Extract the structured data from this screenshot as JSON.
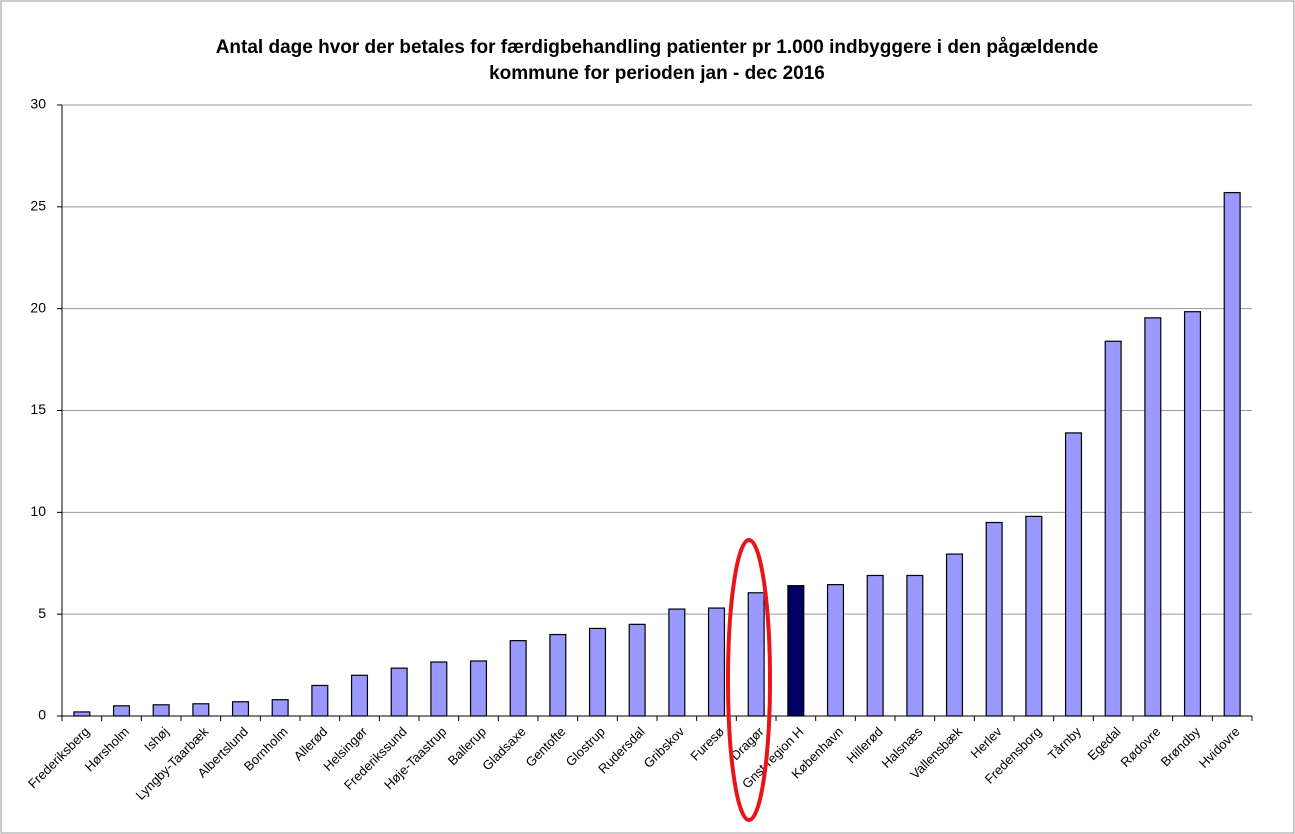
{
  "chart_data": {
    "type": "bar",
    "title": [
      "Antal dage hvor der betales for færdigbehandling patienter pr 1.000 indbyggere i den pågældende",
      "kommune for perioden jan - dec 2016"
    ],
    "categories": [
      "Frederiksberg",
      "Hørsholm",
      "Ishøj",
      "Lyngby-Taarbæk",
      "Albertslund",
      "Bornholm",
      "Allerød",
      "Helsingør",
      "Frederikssund",
      "Høje-Taastrup",
      "Ballerup",
      "Gladsaxe",
      "Gentofte",
      "Glostrup",
      "Rudersdal",
      "Gribskov",
      "Furesø",
      "Dragør",
      "Gnst region H",
      "København",
      "Hillerød",
      "Halsnæs",
      "Vallensbæk",
      "Herlev",
      "Fredensborg",
      "Tårnby",
      "Egedal",
      "Rødovre",
      "Brøndby",
      "Hvidovre"
    ],
    "values": [
      0.2,
      0.5,
      0.55,
      0.6,
      0.7,
      0.8,
      1.5,
      2.0,
      2.35,
      2.65,
      2.7,
      3.7,
      4.0,
      4.3,
      4.5,
      5.25,
      5.3,
      6.05,
      6.4,
      6.45,
      6.9,
      6.9,
      7.95,
      9.5,
      9.8,
      13.9,
      18.4,
      19.55,
      19.85,
      25.7
    ],
    "colors": [
      "#9999ff",
      "#9999ff",
      "#9999ff",
      "#9999ff",
      "#9999ff",
      "#9999ff",
      "#9999ff",
      "#9999ff",
      "#9999ff",
      "#9999ff",
      "#9999ff",
      "#9999ff",
      "#9999ff",
      "#9999ff",
      "#9999ff",
      "#9999ff",
      "#9999ff",
      "#9999ff",
      "#000066",
      "#9999ff",
      "#9999ff",
      "#9999ff",
      "#9999ff",
      "#9999ff",
      "#9999ff",
      "#9999ff",
      "#9999ff",
      "#9999ff",
      "#9999ff",
      "#9999ff"
    ],
    "ylim": [
      0,
      30
    ],
    "yticks": [
      0,
      5,
      10,
      15,
      20,
      25,
      30
    ],
    "grid": true
  }
}
